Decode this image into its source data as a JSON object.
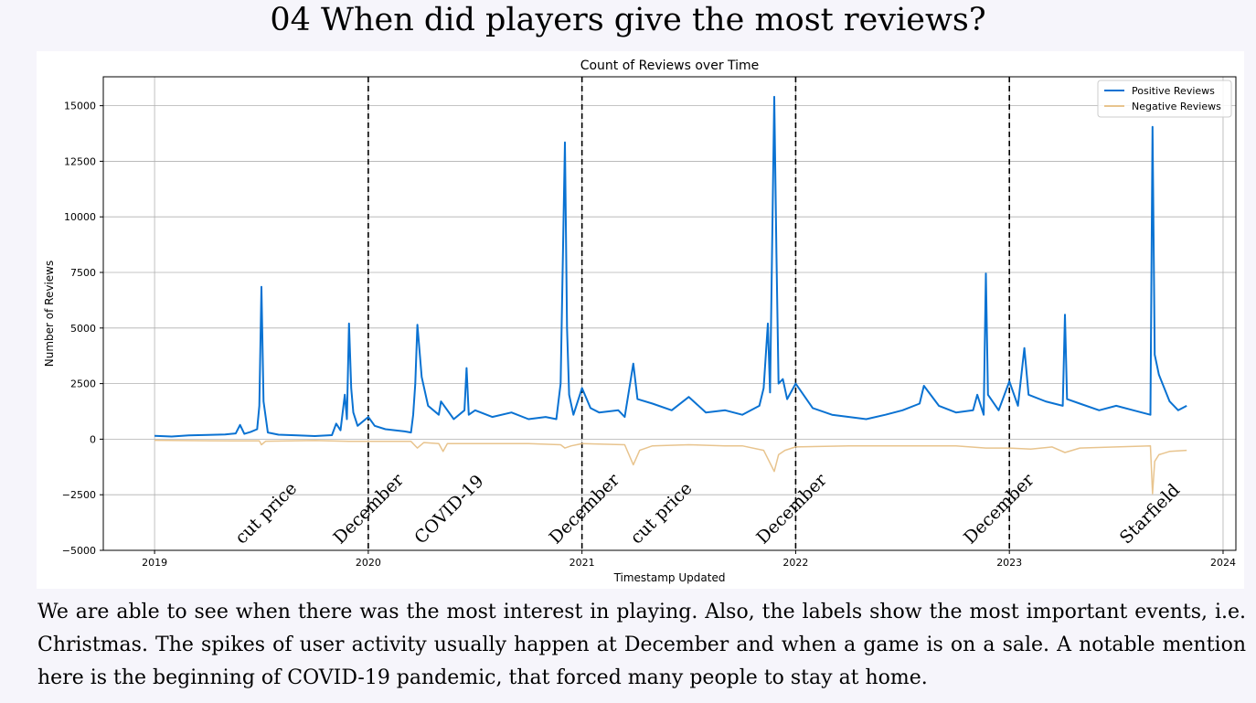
{
  "page": {
    "title": "04 When did players give the most reviews?",
    "caption": "We are able to see when there was the most interest in playing. Also, the labels show the most important events, i.e. Christmas. The spikes of user activity usually happen at December and when a game is on a sale. A notable mention here is the beginning of COVID-19 pandemic, that forced many people to stay at home."
  },
  "chart_data": {
    "type": "line",
    "title": "Count of Reviews over Time",
    "xlabel": "Timestamp Updated",
    "ylabel": "Number of Reviews",
    "xlim": [
      2018.76,
      2024.06
    ],
    "ylim": [
      -5000,
      16300
    ],
    "x_ticks": [
      {
        "value": 2019,
        "label": "2019"
      },
      {
        "value": 2020,
        "label": "2020"
      },
      {
        "value": 2021,
        "label": "2021"
      },
      {
        "value": 2022,
        "label": "2022"
      },
      {
        "value": 2023,
        "label": "2023"
      },
      {
        "value": 2024,
        "label": "2024"
      }
    ],
    "y_ticks": [
      {
        "value": -5000,
        "label": "−5000"
      },
      {
        "value": -2500,
        "label": "−2500"
      },
      {
        "value": 0,
        "label": "0"
      },
      {
        "value": 2500,
        "label": "2500"
      },
      {
        "value": 5000,
        "label": "5000"
      },
      {
        "value": 7500,
        "label": "7500"
      },
      {
        "value": 10000,
        "label": "10000"
      },
      {
        "value": 12500,
        "label": "12500"
      },
      {
        "value": 15000,
        "label": "15000"
      }
    ],
    "grid": true,
    "legend_position": "top-right",
    "series": [
      {
        "name": "Positive Reviews",
        "color": "#0a72d2",
        "points": [
          [
            2019.0,
            150
          ],
          [
            2019.08,
            120
          ],
          [
            2019.16,
            170
          ],
          [
            2019.25,
            190
          ],
          [
            2019.33,
            210
          ],
          [
            2019.38,
            260
          ],
          [
            2019.4,
            640
          ],
          [
            2019.42,
            240
          ],
          [
            2019.45,
            330
          ],
          [
            2019.48,
            450
          ],
          [
            2019.49,
            1500
          ],
          [
            2019.5,
            6850
          ],
          [
            2019.51,
            1700
          ],
          [
            2019.53,
            300
          ],
          [
            2019.58,
            200
          ],
          [
            2019.67,
            170
          ],
          [
            2019.75,
            140
          ],
          [
            2019.83,
            180
          ],
          [
            2019.85,
            700
          ],
          [
            2019.87,
            400
          ],
          [
            2019.89,
            2000
          ],
          [
            2019.9,
            900
          ],
          [
            2019.91,
            5200
          ],
          [
            2019.92,
            2300
          ],
          [
            2019.93,
            1200
          ],
          [
            2019.95,
            600
          ],
          [
            2020.0,
            1000
          ],
          [
            2020.03,
            600
          ],
          [
            2020.08,
            450
          ],
          [
            2020.17,
            350
          ],
          [
            2020.2,
            300
          ],
          [
            2020.21,
            1100
          ],
          [
            2020.22,
            2500
          ],
          [
            2020.23,
            5150
          ],
          [
            2020.25,
            2800
          ],
          [
            2020.28,
            1500
          ],
          [
            2020.33,
            1100
          ],
          [
            2020.34,
            1700
          ],
          [
            2020.4,
            900
          ],
          [
            2020.45,
            1300
          ],
          [
            2020.46,
            3200
          ],
          [
            2020.47,
            1100
          ],
          [
            2020.5,
            1300
          ],
          [
            2020.58,
            1000
          ],
          [
            2020.67,
            1200
          ],
          [
            2020.75,
            900
          ],
          [
            2020.83,
            1000
          ],
          [
            2020.88,
            900
          ],
          [
            2020.9,
            2500
          ],
          [
            2020.92,
            13350
          ],
          [
            2020.93,
            5000
          ],
          [
            2020.94,
            2000
          ],
          [
            2020.96,
            1100
          ],
          [
            2021.0,
            2300
          ],
          [
            2021.04,
            1400
          ],
          [
            2021.08,
            1200
          ],
          [
            2021.17,
            1300
          ],
          [
            2021.2,
            1000
          ],
          [
            2021.24,
            3400
          ],
          [
            2021.26,
            1800
          ],
          [
            2021.33,
            1600
          ],
          [
            2021.42,
            1300
          ],
          [
            2021.5,
            1900
          ],
          [
            2021.58,
            1200
          ],
          [
            2021.67,
            1300
          ],
          [
            2021.75,
            1100
          ],
          [
            2021.83,
            1500
          ],
          [
            2021.85,
            2300
          ],
          [
            2021.87,
            5200
          ],
          [
            2021.88,
            2100
          ],
          [
            2021.9,
            15400
          ],
          [
            2021.91,
            8300
          ],
          [
            2021.92,
            2500
          ],
          [
            2021.94,
            2700
          ],
          [
            2021.96,
            1800
          ],
          [
            2022.0,
            2500
          ],
          [
            2022.08,
            1400
          ],
          [
            2022.17,
            1100
          ],
          [
            2022.25,
            1000
          ],
          [
            2022.33,
            900
          ],
          [
            2022.42,
            1100
          ],
          [
            2022.5,
            1300
          ],
          [
            2022.58,
            1600
          ],
          [
            2022.6,
            2400
          ],
          [
            2022.67,
            1500
          ],
          [
            2022.75,
            1200
          ],
          [
            2022.83,
            1300
          ],
          [
            2022.85,
            2000
          ],
          [
            2022.88,
            1100
          ],
          [
            2022.89,
            7450
          ],
          [
            2022.9,
            2000
          ],
          [
            2022.95,
            1300
          ],
          [
            2023.0,
            2600
          ],
          [
            2023.04,
            1500
          ],
          [
            2023.07,
            4100
          ],
          [
            2023.09,
            2000
          ],
          [
            2023.17,
            1700
          ],
          [
            2023.25,
            1500
          ],
          [
            2023.26,
            5600
          ],
          [
            2023.27,
            1800
          ],
          [
            2023.33,
            1600
          ],
          [
            2023.42,
            1300
          ],
          [
            2023.5,
            1500
          ],
          [
            2023.58,
            1300
          ],
          [
            2023.66,
            1100
          ],
          [
            2023.67,
            14050
          ],
          [
            2023.68,
            3800
          ],
          [
            2023.7,
            2900
          ],
          [
            2023.75,
            1700
          ],
          [
            2023.79,
            1300
          ],
          [
            2023.83,
            1500
          ]
        ]
      },
      {
        "name": "Negative Reviews",
        "color": "#e8c48e",
        "points": [
          [
            2019.0,
            -50
          ],
          [
            2019.25,
            -70
          ],
          [
            2019.49,
            -80
          ],
          [
            2019.5,
            -250
          ],
          [
            2019.52,
            -90
          ],
          [
            2019.75,
            -60
          ],
          [
            2019.91,
            -100
          ],
          [
            2020.0,
            -100
          ],
          [
            2020.2,
            -100
          ],
          [
            2020.23,
            -400
          ],
          [
            2020.26,
            -150
          ],
          [
            2020.33,
            -200
          ],
          [
            2020.35,
            -550
          ],
          [
            2020.37,
            -200
          ],
          [
            2020.5,
            -200
          ],
          [
            2020.75,
            -200
          ],
          [
            2020.9,
            -250
          ],
          [
            2020.92,
            -400
          ],
          [
            2020.95,
            -300
          ],
          [
            2021.0,
            -200
          ],
          [
            2021.2,
            -250
          ],
          [
            2021.24,
            -1150
          ],
          [
            2021.27,
            -500
          ],
          [
            2021.33,
            -300
          ],
          [
            2021.5,
            -250
          ],
          [
            2021.67,
            -300
          ],
          [
            2021.75,
            -300
          ],
          [
            2021.85,
            -500
          ],
          [
            2021.9,
            -1450
          ],
          [
            2021.92,
            -700
          ],
          [
            2021.95,
            -500
          ],
          [
            2022.0,
            -350
          ],
          [
            2022.25,
            -300
          ],
          [
            2022.5,
            -300
          ],
          [
            2022.75,
            -300
          ],
          [
            2022.89,
            -400
          ],
          [
            2023.0,
            -400
          ],
          [
            2023.1,
            -450
          ],
          [
            2023.2,
            -350
          ],
          [
            2023.26,
            -600
          ],
          [
            2023.33,
            -400
          ],
          [
            2023.5,
            -350
          ],
          [
            2023.66,
            -300
          ],
          [
            2023.67,
            -2450
          ],
          [
            2023.68,
            -1000
          ],
          [
            2023.7,
            -700
          ],
          [
            2023.75,
            -550
          ],
          [
            2023.83,
            -500
          ]
        ]
      }
    ],
    "vlines": [
      2020.0,
      2021.0,
      2022.0,
      2023.0
    ],
    "annotations": [
      {
        "text": "cut price",
        "x": 2019.41
      },
      {
        "text": "December",
        "x": 2019.87
      },
      {
        "text": "COVID-19",
        "x": 2020.25
      },
      {
        "text": "December",
        "x": 2020.88
      },
      {
        "text": "cut price",
        "x": 2021.26
      },
      {
        "text": "December",
        "x": 2021.85
      },
      {
        "text": "December",
        "x": 2022.82
      },
      {
        "text": "Starfield",
        "x": 2023.55
      }
    ]
  }
}
